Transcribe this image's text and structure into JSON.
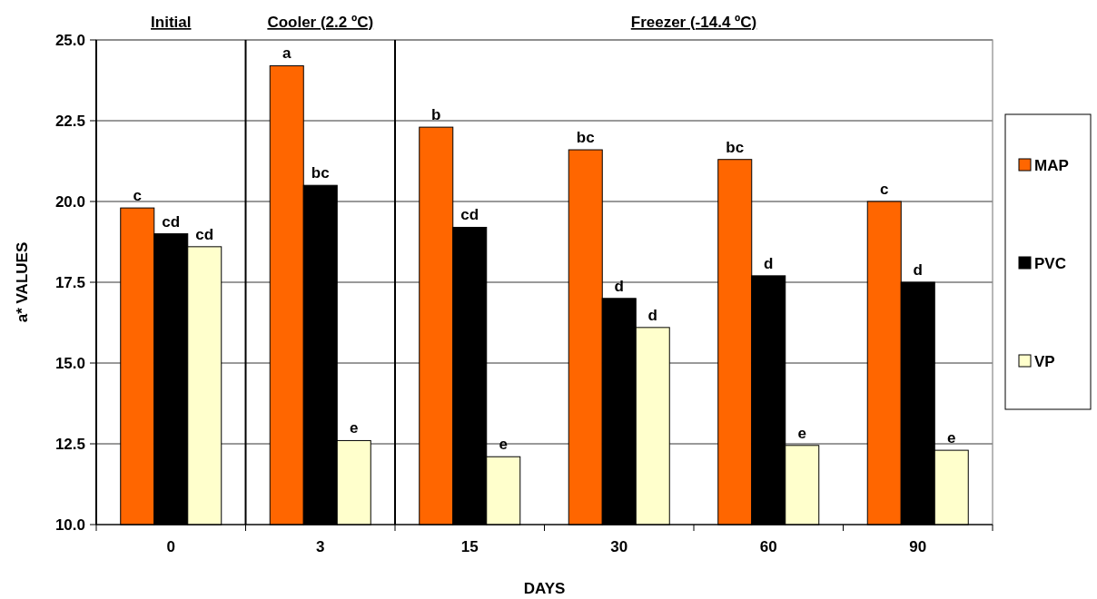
{
  "chart_data": {
    "type": "bar",
    "xlabel": "DAYS",
    "ylabel": "a*  VALUES",
    "categories": [
      "0",
      "3",
      "15",
      "30",
      "60",
      "90"
    ],
    "series": [
      {
        "name": "MAP",
        "color": "#ff6600",
        "values": [
          19.8,
          24.2,
          22.3,
          21.6,
          21.3,
          20.0
        ],
        "value_labels": [
          "c",
          "a",
          "b",
          "bc",
          "bc",
          "c"
        ]
      },
      {
        "name": "PVC",
        "color": "#000000",
        "values": [
          19.0,
          20.5,
          19.2,
          17.0,
          17.7,
          17.5
        ],
        "value_labels": [
          "cd",
          "bc",
          "cd",
          "d",
          "d",
          "d"
        ]
      },
      {
        "name": "VP",
        "color": "#ffffcc",
        "values": [
          18.6,
          12.6,
          12.1,
          16.1,
          12.45,
          12.3
        ],
        "value_labels": [
          "cd",
          "e",
          "e",
          "d",
          "e",
          "e"
        ]
      }
    ],
    "annotations": [
      "Initial",
      "Cooler (2.2 ºC)",
      "Freezer (-14.4 ºC)"
    ],
    "ylim": [
      10,
      25
    ],
    "yticks": [
      {
        "value": 10,
        "label": "10.0"
      },
      {
        "value": 12.5,
        "label": "12.5"
      },
      {
        "value": 15,
        "label": "15.0"
      },
      {
        "value": 17.5,
        "label": "17.5"
      },
      {
        "value": 20,
        "label": "20.0"
      },
      {
        "value": 22.5,
        "label": "22.5"
      },
      {
        "value": 25,
        "label": "25.0"
      }
    ],
    "grid": "y",
    "legend": "right"
  }
}
